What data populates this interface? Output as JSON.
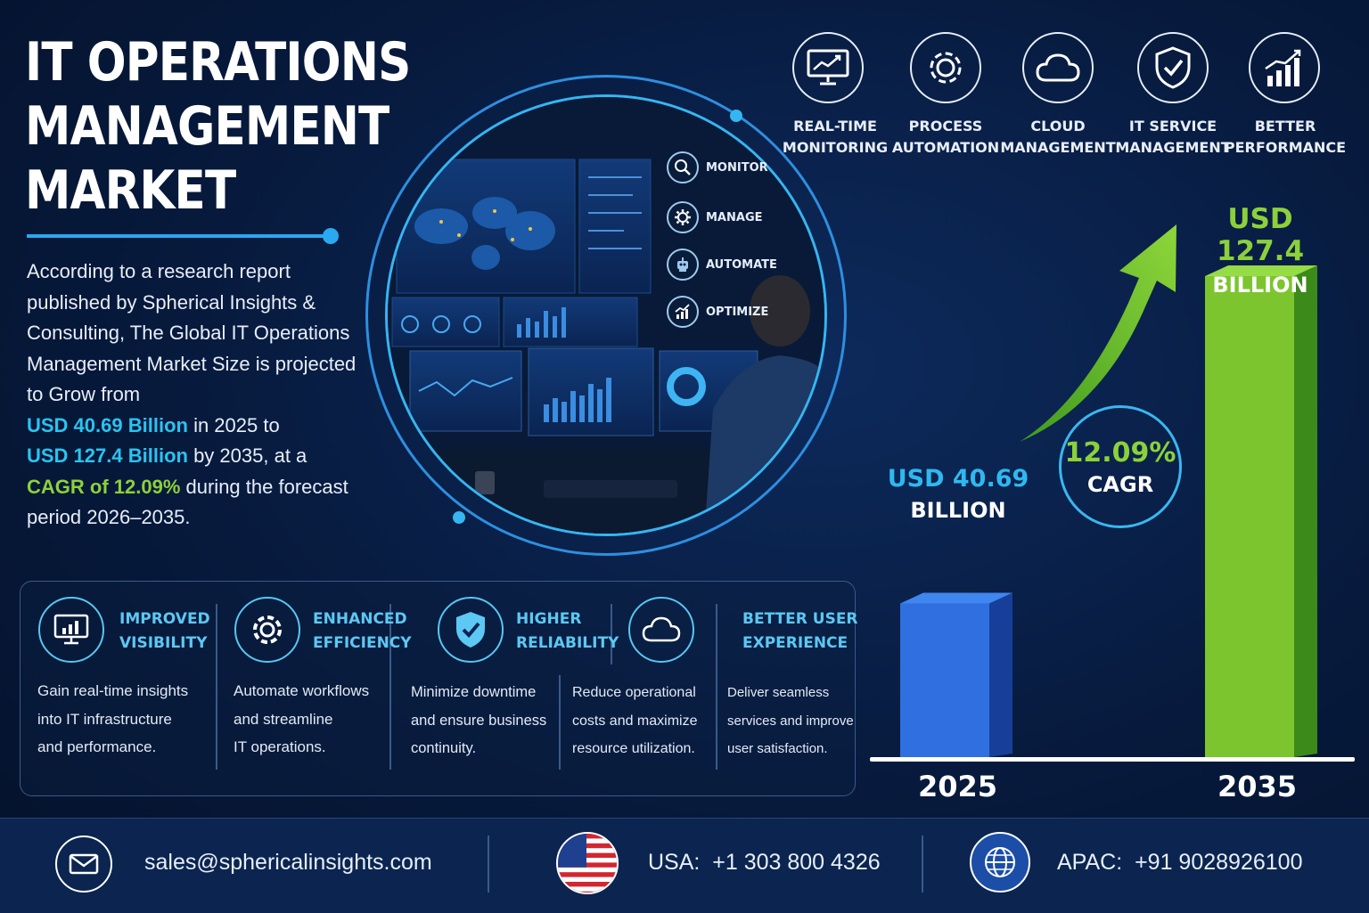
{
  "title": {
    "line1": "IT OPERATIONS",
    "line2": "MANAGEMENT",
    "line3": "MARKET"
  },
  "intro": {
    "text1": "According to a research report published by Spherical Insights & Consulting, The Global IT Operations Management Market Size is projected to Grow from",
    "value2025": "USD 40.69 Billion",
    "text2": " in 2025 to",
    "value2035": "USD 127.4 Billion",
    "text3": " by 2035, at a",
    "cagr": "CAGR of 12.09%",
    "text4": " during the forecast period 2026–2035."
  },
  "circle_items": [
    {
      "label": "MONITOR",
      "icon": "magnifier-icon"
    },
    {
      "label": "MANAGE",
      "icon": "gear-icon"
    },
    {
      "label": "AUTOMATE",
      "icon": "robot-icon"
    },
    {
      "label": "OPTIMIZE",
      "icon": "growth-chart-icon"
    }
  ],
  "features": [
    {
      "line1": "REAL-TIME",
      "line2": "MONITORING",
      "icon": "monitor-chart-icon"
    },
    {
      "line1": "PROCESS",
      "line2": "AUTOMATION",
      "icon": "gear-icon"
    },
    {
      "line1": "CLOUD",
      "line2": "MANAGEMENT",
      "icon": "cloud-icon"
    },
    {
      "line1": "IT SERVICE",
      "line2": "MANAGEMENT",
      "icon": "shield-check-icon"
    },
    {
      "line1": "BETTER",
      "line2": "PERFORMANCE",
      "icon": "bar-growth-icon"
    }
  ],
  "benefits": [
    {
      "title1": "IMPROVED",
      "title2": "VISIBILITY",
      "desc1": "Gain real-time insights",
      "desc2": "into IT infrastructure",
      "desc3": "and performance.",
      "icon": "monitor-bars-icon"
    },
    {
      "title1": "ENHANCED",
      "title2": "EFFICIENCY",
      "desc1": "Automate workflows",
      "desc2": "and streamline",
      "desc3": "IT operations.",
      "icon": "gear-icon"
    },
    {
      "title1": "HIGHER",
      "title2": "RELIABILITY",
      "desc1": "Minimize downtime",
      "desc2": "and ensure business",
      "desc3": "continuity.",
      "icon": "shield-check-icon"
    },
    {
      "title1": "",
      "title2": "",
      "desc1": "Reduce operational",
      "desc2": "costs and maximize",
      "desc3": "resource utilization.",
      "icon": "cloud-icon"
    },
    {
      "title1": "BETTER USER",
      "title2": "EXPERIENCE",
      "desc1": "Deliver seamless",
      "desc2": "services and improve",
      "desc3": "user satisfaction.",
      "icon": ""
    }
  ],
  "chart_data": {
    "type": "bar",
    "categories": [
      "2025",
      "2035"
    ],
    "values": [
      40.69,
      127.4
    ],
    "labels": [
      {
        "line1": "USD 40.69",
        "line2": "BILLION"
      },
      {
        "line1": "USD 127.4",
        "line2": "BILLION"
      }
    ],
    "colors": [
      "#2f6fe0",
      "#7cc52e"
    ],
    "cagr_value": "12.09%",
    "cagr_label": "CAGR"
  },
  "footer": {
    "email": "sales@sphericalinsights.com",
    "usa_label": "USA:",
    "usa_phone": "+1 303 800 4326",
    "apac_label": "APAC:",
    "apac_phone": "+91 9028926100"
  }
}
